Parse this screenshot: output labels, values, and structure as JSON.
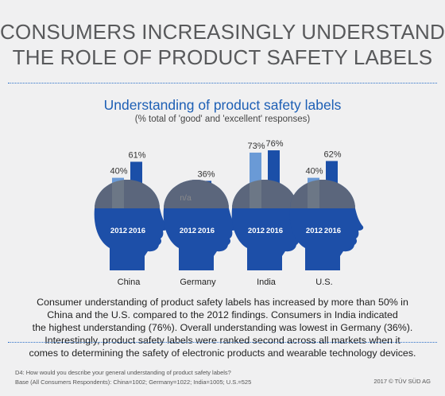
{
  "header": {
    "title_line1": "CONSUMERS INCREASINGLY UNDERSTAND",
    "title_line2": "THE ROLE OF PRODUCT SAFETY LABELS"
  },
  "chart_data": {
    "type": "bar",
    "title": "Understanding of product safety labels",
    "subtitle": "(% total of 'good' and 'excellent' responses)",
    "categories": [
      "China",
      "Germany",
      "India",
      "U.S."
    ],
    "series": [
      {
        "name": "2012",
        "values": [
          40,
          null,
          73,
          40
        ],
        "labels": [
          "40%",
          "n/a",
          "73%",
          "40%"
        ],
        "color": "#6a9ad6"
      },
      {
        "name": "2016",
        "values": [
          61,
          36,
          76,
          62
        ],
        "labels": [
          "61%",
          "36%",
          "76%",
          "62%"
        ],
        "color": "#1b4fa8"
      }
    ],
    "ylim": [
      0,
      100
    ],
    "grid": false,
    "legend": "none"
  },
  "colors": {
    "head": "#1d4fa8",
    "head_top": "#6d6d70",
    "title": "#58595b",
    "accent": "#1d5fb5"
  },
  "body_text": [
    "Consumer understanding of product safety labels has increased by more than 50% in",
    "China and the U.S. compared to the 2012 findings. Consumers in India indicated",
    "the highest understanding (76%). Overall understanding was lowest in Germany (36%).",
    "Interestingly, product safety labels were ranked second across all markets when it",
    "comes to determining the safety of electronic products and wearable technology devices."
  ],
  "footnote": {
    "line1": "D4: How would you describe your general understanding of product safety labels?",
    "line2": "Base (All Consumers Respondents): China=1002; Germany=1022; India=1005; U.S.=525"
  },
  "copyright": "2017 © TÜV SÜD AG"
}
